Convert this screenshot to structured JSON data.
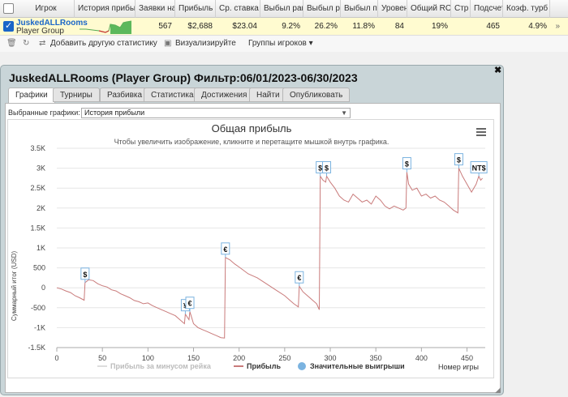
{
  "grid": {
    "columns": [
      "Игрок",
      "История прибыли",
      "Заявки на",
      "Прибыль",
      "Ср. ставка",
      "Выбыл раньше",
      "Выбыл рано",
      "Выбыл поздно",
      "Уровень",
      "Общий ROI",
      "Стр",
      "Подсчет",
      "Коэф. турб"
    ],
    "row": {
      "checked": true,
      "player_name": "JuskedALLRooms",
      "player_group": "Player Group",
      "entries": "567",
      "profit": "$2,688",
      "avg_stake": "$23.04",
      "early_out": "9.2%",
      "early": "26.2%",
      "late": "11.8%",
      "level": "84",
      "roi": "19%",
      "count": "465",
      "turbo": "4.9%"
    },
    "toolbar": {
      "add_stats": "Добавить другую статистику",
      "visualize": "Визуализируйте",
      "player_groups": "Группы игроков"
    }
  },
  "popup": {
    "title": "JuskedALLRooms (Player Group) Фильтр:06/01/2023-06/30/2023",
    "tabs": [
      "Графики",
      "Турниры",
      "Разбивка",
      "Статистика",
      "Достижения",
      "Найти",
      "Опубликовать"
    ],
    "selected_label": "Выбранные графики:",
    "selected_value": "История прибыли"
  },
  "chart_data": {
    "type": "line",
    "title": "Общая прибыль",
    "subtitle": "Чтобы увеличить изображение, кликните и перетащите мышкой внутрь графика.",
    "xlabel": "Номер игры",
    "ylabel": "Суммарный итог (USD)",
    "xlim": [
      0,
      470
    ],
    "ylim": [
      -1500,
      3500
    ],
    "x_ticks": [
      "0",
      "50",
      "100",
      "150",
      "200",
      "250",
      "300",
      "350",
      "400",
      "450"
    ],
    "y_ticks": [
      "3.5K",
      "3K",
      "2.5K",
      "2K",
      "1.5K",
      "1K",
      "500",
      "0",
      "-500",
      "-1K",
      "-1.5K"
    ],
    "legend": [
      "Прибыль за минусом рейка",
      "Прибыль",
      "Значительные выигрыши"
    ],
    "legend_position": "bottom",
    "colors": {
      "profit": "#c97b7b",
      "rake": "#dddddd",
      "marker": "#7bb3e0"
    },
    "series": [
      {
        "name": "Прибыль",
        "x": [
          0,
          5,
          10,
          15,
          20,
          25,
          30,
          31,
          35,
          40,
          45,
          50,
          55,
          60,
          65,
          70,
          75,
          80,
          85,
          90,
          95,
          100,
          105,
          110,
          115,
          120,
          125,
          130,
          135,
          140,
          141,
          145,
          146,
          150,
          155,
          160,
          165,
          170,
          175,
          180,
          184,
          185,
          190,
          195,
          200,
          210,
          220,
          230,
          240,
          250,
          255,
          260,
          265,
          266,
          270,
          275,
          280,
          285,
          288,
          289,
          292,
          295,
          296,
          300,
          305,
          310,
          315,
          320,
          325,
          330,
          335,
          340,
          345,
          350,
          355,
          360,
          365,
          370,
          375,
          380,
          383,
          384,
          386,
          390,
          395,
          400,
          405,
          410,
          415,
          420,
          425,
          430,
          435,
          440,
          441,
          445,
          450,
          455,
          460,
          463,
          465,
          467
        ],
        "values": [
          0,
          -30,
          -80,
          -120,
          -200,
          -250,
          -310,
          130,
          200,
          180,
          100,
          50,
          20,
          -50,
          -80,
          -150,
          -200,
          -250,
          -320,
          -350,
          -400,
          -380,
          -450,
          -500,
          -550,
          -600,
          -650,
          -700,
          -800,
          -900,
          -660,
          -800,
          -600,
          -900,
          -1000,
          -1050,
          -1100,
          -1150,
          -1200,
          -1250,
          -1260,
          760,
          700,
          600,
          520,
          350,
          250,
          100,
          -50,
          -200,
          -300,
          -400,
          -480,
          40,
          -100,
          -200,
          -300,
          -400,
          -550,
          2800,
          2700,
          2650,
          2800,
          2650,
          2500,
          2300,
          2200,
          2150,
          2350,
          2250,
          2150,
          2200,
          2100,
          2300,
          2200,
          2050,
          1980,
          2050,
          2000,
          1950,
          2000,
          2900,
          2600,
          2450,
          2500,
          2300,
          2350,
          2250,
          2300,
          2200,
          2150,
          2050,
          1950,
          1880,
          3000,
          2800,
          2600,
          2400,
          2600,
          2800,
          2700,
          2750
        ]
      }
    ],
    "big_wins": [
      {
        "x": 31,
        "y": 130,
        "label": "$"
      },
      {
        "x": 141,
        "y": -660,
        "label": "¥"
      },
      {
        "x": 146,
        "y": -600,
        "label": "€"
      },
      {
        "x": 185,
        "y": 760,
        "label": "€"
      },
      {
        "x": 266,
        "y": 40,
        "label": "€"
      },
      {
        "x": 289,
        "y": 2800,
        "label": "$"
      },
      {
        "x": 296,
        "y": 2800,
        "label": "$"
      },
      {
        "x": 384,
        "y": 2900,
        "label": "$"
      },
      {
        "x": 441,
        "y": 3000,
        "label": "$"
      },
      {
        "x": 463,
        "y": 2800,
        "label": "NT$"
      }
    ]
  }
}
